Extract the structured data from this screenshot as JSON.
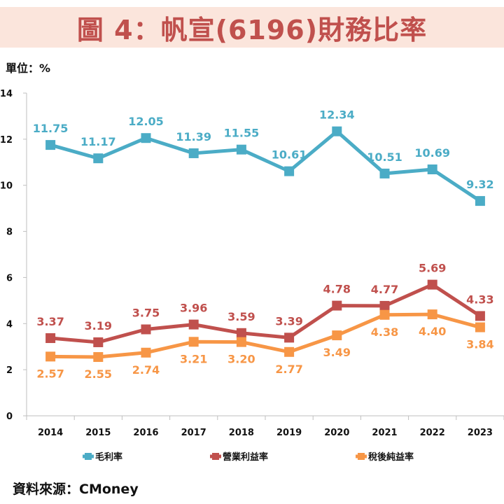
{
  "header": {
    "title": "圖 4：帆宣(6196)財務比率"
  },
  "unit_label": "單位：%",
  "source_label": "資料來源：CMoney",
  "colors": {
    "title_bg": "#fbe5dc",
    "title_text": "#c0504d"
  },
  "chart_data": {
    "type": "line",
    "title": "圖 4：帆宣(6196)財務比率",
    "xlabel": "",
    "ylabel": "單位：%",
    "categories": [
      "2014",
      "2015",
      "2016",
      "2017",
      "2018",
      "2019",
      "2020",
      "2021",
      "2022",
      "2023"
    ],
    "ylim": [
      0,
      14
    ],
    "yticks": [
      0,
      2,
      4,
      6,
      8,
      10,
      12,
      14
    ],
    "grid": false,
    "legend_position": "bottom",
    "series": [
      {
        "name": "毛利率",
        "color": "#4bacc6",
        "label_pos": "above",
        "values": [
          11.75,
          11.17,
          12.05,
          11.39,
          11.55,
          10.61,
          12.34,
          10.51,
          10.69,
          9.32
        ]
      },
      {
        "name": "營業利益率",
        "color": "#c0504d",
        "label_pos": "above",
        "values": [
          3.37,
          3.19,
          3.75,
          3.96,
          3.59,
          3.39,
          4.78,
          4.77,
          5.69,
          4.33
        ]
      },
      {
        "name": "稅後純益率",
        "color": "#f79646",
        "label_pos": "below",
        "values": [
          2.57,
          2.55,
          2.74,
          3.21,
          3.2,
          2.77,
          3.49,
          4.38,
          4.4,
          3.84
        ]
      }
    ]
  }
}
